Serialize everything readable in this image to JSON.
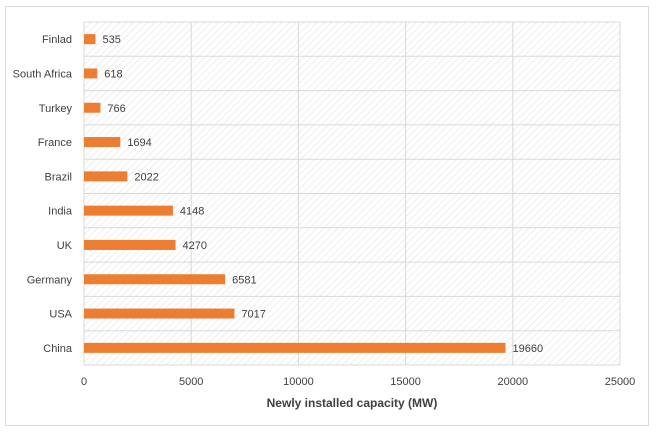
{
  "chart_data": {
    "type": "bar",
    "orientation": "horizontal",
    "title": "",
    "xlabel": "Newly installed capacity (MW)",
    "ylabel": "",
    "xlim": [
      0,
      25000
    ],
    "xticks": [
      0,
      5000,
      10000,
      15000,
      20000,
      25000
    ],
    "xtick_labels": [
      "0",
      "5000",
      "10000",
      "15000",
      "20000",
      "25000"
    ],
    "grid": true,
    "legend": "none",
    "bar_color": "#ED7D31",
    "categories": [
      "Finlad",
      "South Africa",
      "Turkey",
      "France",
      "Brazil",
      "India",
      "UK",
      "Germany",
      "USA",
      "China"
    ],
    "values": [
      535,
      618,
      766,
      1694,
      2022,
      4148,
      4270,
      6581,
      7017,
      19660
    ],
    "data_labels": [
      "535",
      "618",
      "766",
      "1694",
      "2022",
      "4148",
      "4270",
      "6581",
      "7017",
      "19660"
    ]
  }
}
